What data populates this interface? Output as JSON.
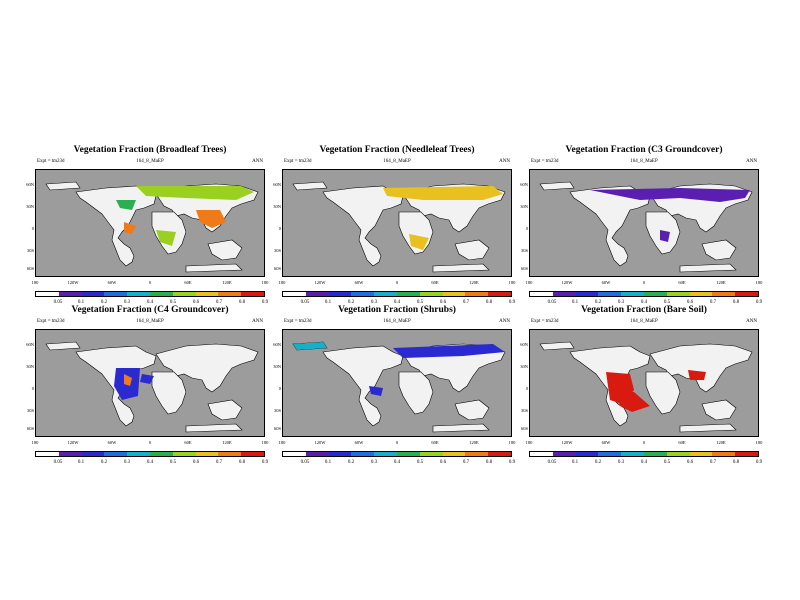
{
  "subtitle_left": "Expt = tm23d",
  "subtitle_center": "164_8_MaEP",
  "subtitle_right": "ANN",
  "lat_labels": [
    "60N",
    "30N",
    "0",
    "30S",
    "60S"
  ],
  "lon_labels": [
    "180",
    "120W",
    "60W",
    "0",
    "60E",
    "120E",
    "180"
  ],
  "colorbar_labels": [
    "0.05",
    "0.1",
    "0.2",
    "0.3",
    "0.4",
    "0.5",
    "0.6",
    "0.7",
    "0.8",
    "0.9"
  ],
  "colorbar_colors": [
    "#ffffff",
    "#5a1fb0",
    "#2a2ad0",
    "#1e6fe0",
    "#18b0c8",
    "#2ab050",
    "#9ad020",
    "#e8c020",
    "#f07a18",
    "#d81a10"
  ],
  "colors": {
    "land_background": "#f2f2f2",
    "ocean": "#9c9c9c",
    "no_vegetation": "#ffffff"
  },
  "panels": [
    {
      "title": "Vegetation Fraction (Broadleaf Trees)",
      "dominant_color": "#f07a18"
    },
    {
      "title": "Vegetation Fraction (Needleleaf Trees)",
      "dominant_color": "#e8c020"
    },
    {
      "title": "Vegetation Fraction (C3 Groundcover)",
      "dominant_color": "#2a2ad0"
    },
    {
      "title": "Vegetation Fraction (C4 Groundcover)",
      "dominant_color": "#2a2ad0"
    },
    {
      "title": "Vegetation Fraction (Shrubs)",
      "dominant_color": "#2a2ad0"
    },
    {
      "title": "Vegetation Fraction (Bare Soil)",
      "dominant_color": "#d81a10"
    }
  ]
}
